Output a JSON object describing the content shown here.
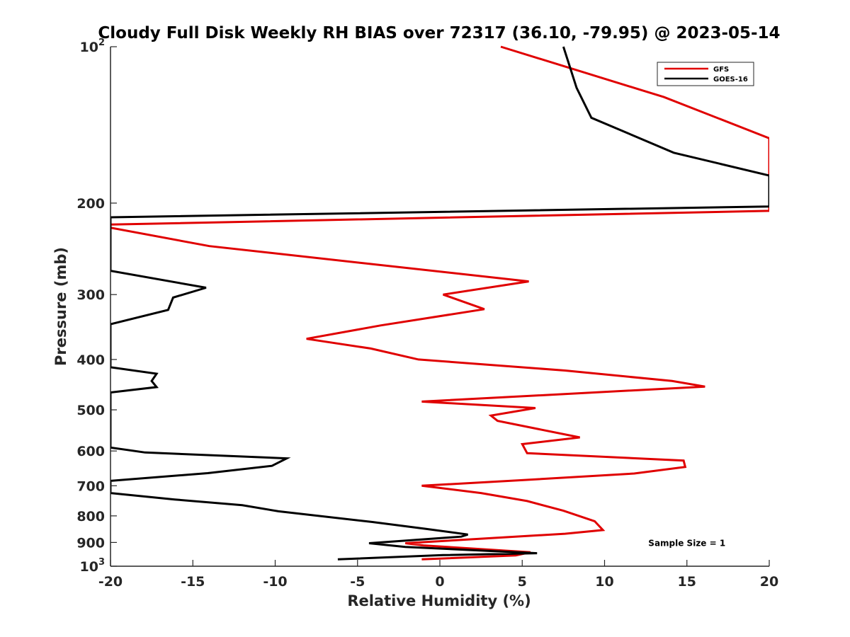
{
  "chart_data": {
    "type": "line",
    "title": "Cloudy Full Disk Weekly RH BIAS over 72317 (36.10, -79.95) @ 2023-05-14",
    "xlabel": "Relative Humidity (%)",
    "ylabel": "Pressure (mb)",
    "xlim": [
      -20,
      20
    ],
    "ylim": [
      100,
      1000
    ],
    "y_scale": "log",
    "y_reversed": true,
    "grid": false,
    "legend_position": "top-right",
    "x_ticks": [
      "-20",
      "-15",
      "-10",
      "-5",
      "0",
      "5",
      "10",
      "15",
      "20"
    ],
    "y_ticks": [
      {
        "value": 100,
        "base": "10",
        "exp": "2"
      },
      {
        "value": 200,
        "label": "200"
      },
      {
        "value": 300,
        "label": "300"
      },
      {
        "value": 400,
        "label": "400"
      },
      {
        "value": 500,
        "label": "500"
      },
      {
        "value": 600,
        "label": "600"
      },
      {
        "value": 700,
        "label": "700"
      },
      {
        "value": 800,
        "label": "800"
      },
      {
        "value": 900,
        "label": "900"
      },
      {
        "value": 1000,
        "base": "10",
        "exp": "3"
      }
    ],
    "series": [
      {
        "name": "GFS",
        "color": "#e00000",
        "points": [
          [
            3.7,
            100
          ],
          [
            13.6,
            125
          ],
          [
            20,
            150
          ],
          [
            20,
            207
          ],
          [
            -20,
            220
          ],
          [
            -20,
            223
          ],
          [
            -14,
            242
          ],
          [
            5.4,
            283
          ],
          [
            0.2,
            300
          ],
          [
            2.7,
            320
          ],
          [
            -3.6,
            344
          ],
          [
            -8.1,
            365
          ],
          [
            -4.2,
            381
          ],
          [
            -1.3,
            400
          ],
          [
            7.6,
            420
          ],
          [
            14.1,
            440
          ],
          [
            16.1,
            451
          ],
          [
            -1.1,
            482
          ],
          [
            5.8,
            496
          ],
          [
            3.1,
            513
          ],
          [
            3.5,
            525
          ],
          [
            8.5,
            565
          ],
          [
            5.0,
            582
          ],
          [
            5.3,
            606
          ],
          [
            14.8,
            626
          ],
          [
            14.9,
            644
          ],
          [
            11.8,
            663
          ],
          [
            4.9,
            683
          ],
          [
            -1.1,
            700
          ],
          [
            2.5,
            723
          ],
          [
            5.3,
            749
          ],
          [
            7.5,
            782
          ],
          [
            9.4,
            819
          ],
          [
            9.9,
            852
          ],
          [
            7.6,
            866
          ],
          [
            -2.1,
            903
          ],
          [
            -1.0,
            912
          ],
          [
            5.5,
            940
          ],
          [
            4.6,
            953
          ],
          [
            -1.1,
            970
          ]
        ]
      },
      {
        "name": "GOES-16",
        "color": "#000000",
        "points": [
          [
            7.5,
            100
          ],
          [
            8.3,
            120
          ],
          [
            9.2,
            137
          ],
          [
            14.2,
            160
          ],
          [
            20,
            177
          ],
          [
            20,
            203
          ],
          [
            -20,
            213
          ],
          [
            -20,
            270
          ],
          [
            -14.2,
            291
          ],
          [
            -16.2,
            304
          ],
          [
            -16.5,
            321
          ],
          [
            -20,
            342
          ],
          [
            -20,
            414
          ],
          [
            -17.2,
            426
          ],
          [
            -17.5,
            440
          ],
          [
            -17.2,
            452
          ],
          [
            -20,
            463
          ],
          [
            -20,
            591
          ],
          [
            -17.9,
            604
          ],
          [
            -9.3,
            620
          ],
          [
            -10.2,
            641
          ],
          [
            -14.1,
            662
          ],
          [
            -20,
            685
          ],
          [
            -20,
            723
          ],
          [
            -16.1,
            744
          ],
          [
            -12.0,
            763
          ],
          [
            -9.8,
            784
          ],
          [
            -4.1,
            822
          ],
          [
            -0.8,
            848
          ],
          [
            1.7,
            869
          ],
          [
            1.3,
            877
          ],
          [
            -4.3,
            903
          ],
          [
            -2.1,
            918
          ],
          [
            5.9,
            944
          ],
          [
            0.2,
            952
          ],
          [
            -6.2,
            970
          ]
        ]
      }
    ],
    "annotations": [
      {
        "text": "Sample Size = 1",
        "x": 15,
        "y": 900
      }
    ]
  }
}
